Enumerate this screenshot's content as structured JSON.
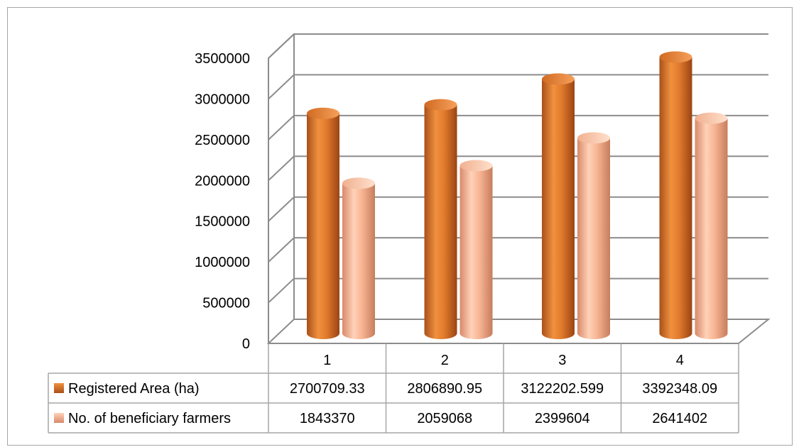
{
  "chart_data": {
    "type": "bar",
    "categories": [
      "1",
      "2",
      "3",
      "4"
    ],
    "series": [
      {
        "name": "Registered Area (ha)",
        "values": [
          2700709.33,
          2806890.95,
          3122202.599,
          3392348.09
        ],
        "labels": [
          "2700709.33",
          "2806890.95",
          "3122202.599",
          "3392348.09"
        ],
        "color": "#e07b2c"
      },
      {
        "name": "No. of beneficiary farmers",
        "values": [
          1843370,
          2059068,
          2399604,
          2641402
        ],
        "labels": [
          "1843370",
          "2059068",
          "2399604",
          "2641402"
        ],
        "color": "#f7b594"
      }
    ],
    "ylim": [
      0,
      3500000
    ],
    "yticks": [
      "0",
      "500000",
      "1000000",
      "1500000",
      "2000000",
      "2500000",
      "3000000",
      "3500000"
    ],
    "grid": true,
    "legend": "data-table",
    "title": "",
    "xlabel": "",
    "ylabel": ""
  }
}
